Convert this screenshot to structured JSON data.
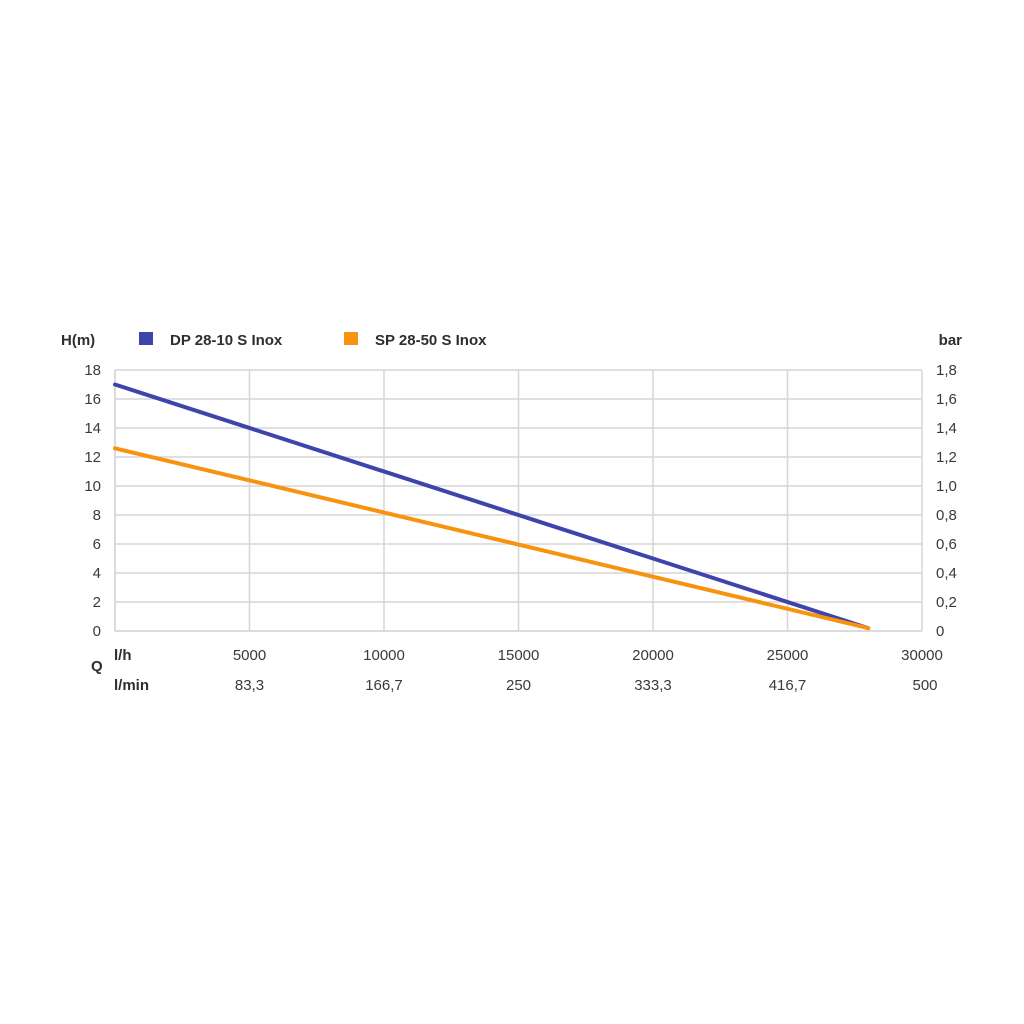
{
  "chart_data": {
    "type": "line",
    "y_label": "H(m)",
    "y2_label": "bar",
    "q_label": "Q",
    "x_unit_label": "l/h",
    "x2_unit_label": "l/min",
    "xlim": [
      0,
      30000
    ],
    "ylim": [
      0,
      18
    ],
    "y2lim": [
      0,
      1.8
    ],
    "x_ticks": [
      {
        "value": 5000,
        "label": "5000"
      },
      {
        "value": 10000,
        "label": "10000"
      },
      {
        "value": 15000,
        "label": "15000"
      },
      {
        "value": 20000,
        "label": "20000"
      },
      {
        "value": 25000,
        "label": "25000"
      },
      {
        "value": 30000,
        "label": "30000"
      }
    ],
    "x2_ticks": [
      {
        "value": 5000,
        "label": "83,3"
      },
      {
        "value": 10000,
        "label": "166,7"
      },
      {
        "value": 15000,
        "label": "250"
      },
      {
        "value": 20000,
        "label": "333,3"
      },
      {
        "value": 25000,
        "label": "416,7"
      },
      {
        "value": 30000,
        "label": "500"
      }
    ],
    "y_ticks": [
      {
        "value": 0,
        "label": "0"
      },
      {
        "value": 2,
        "label": "2"
      },
      {
        "value": 4,
        "label": "4"
      },
      {
        "value": 6,
        "label": "6"
      },
      {
        "value": 8,
        "label": "8"
      },
      {
        "value": 10,
        "label": "10"
      },
      {
        "value": 12,
        "label": "12"
      },
      {
        "value": 14,
        "label": "14"
      },
      {
        "value": 16,
        "label": "16"
      },
      {
        "value": 18,
        "label": "18"
      }
    ],
    "y2_ticks": [
      {
        "value": 0,
        "label": "0"
      },
      {
        "value": 0.2,
        "label": "0,2"
      },
      {
        "value": 0.4,
        "label": "0,4"
      },
      {
        "value": 0.6,
        "label": "0,6"
      },
      {
        "value": 0.8,
        "label": "0,8"
      },
      {
        "value": 1.0,
        "label": "1,0"
      },
      {
        "value": 1.2,
        "label": "1,2"
      },
      {
        "value": 1.4,
        "label": "1,4"
      },
      {
        "value": 1.6,
        "label": "1,6"
      },
      {
        "value": 1.8,
        "label": "1,8"
      }
    ],
    "grid": true,
    "legend_position": "top",
    "series": [
      {
        "name": "DP 28-10 S Inox",
        "color": "#3f44ad",
        "points": [
          [
            0,
            17
          ],
          [
            28000,
            0.2
          ]
        ]
      },
      {
        "name": "SP 28-50 S Inox",
        "color": "#f7930e",
        "points": [
          [
            0,
            12.6
          ],
          [
            28000,
            0.2
          ]
        ]
      }
    ]
  }
}
